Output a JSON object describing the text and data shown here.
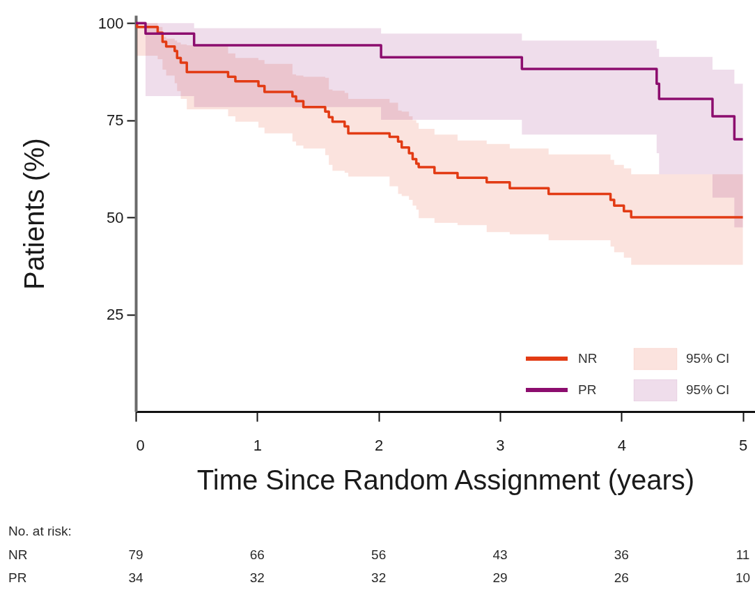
{
  "chart_data": [
    {
      "type": "step",
      "xlabel": "Time Since Random Assignment (years)",
      "ylabel": "Patients (%)",
      "xlim": [
        0,
        5.1
      ],
      "ylim": [
        0,
        102
      ],
      "xticks": [
        0,
        1,
        2,
        3,
        4,
        5
      ],
      "yticks": [
        25,
        50,
        75,
        100
      ],
      "legend": "bottom right",
      "line_style": "solid",
      "annotations": [
        "95% CI",
        "95% CI"
      ],
      "series": [
        {
          "name": "NR",
          "color": "#e23b14",
          "x": [
            0,
            0.01,
            0.18,
            0.22,
            0.25,
            0.32,
            0.34,
            0.37,
            0.42,
            0.76,
            0.82,
            1.01,
            1.06,
            1.29,
            1.32,
            1.38,
            1.56,
            1.59,
            1.62,
            1.72,
            1.75,
            2.09,
            2.16,
            2.19,
            2.25,
            2.28,
            2.31,
            2.33,
            2.46,
            2.65,
            2.89,
            3.08,
            3.4,
            3.91,
            3.94,
            4.02,
            4.08,
            5.0
          ],
          "values": [
            100,
            99.0,
            97.5,
            95.2,
            94.0,
            92.8,
            91.0,
            89.8,
            87.4,
            86.2,
            85.0,
            83.8,
            82.3,
            81.1,
            79.9,
            78.4,
            77.2,
            75.8,
            74.6,
            73.4,
            71.6,
            70.7,
            69.5,
            68.0,
            66.5,
            65.0,
            63.8,
            62.9,
            61.4,
            60.2,
            59.0,
            57.5,
            56.0,
            54.5,
            53.0,
            51.6,
            50.0,
            50.0
          ],
          "upper": [
            100,
            100,
            99,
            96.4,
            96,
            95.5,
            95,
            94.5,
            94.3,
            92.2,
            91,
            90.5,
            89.5,
            86.8,
            86.5,
            86.2,
            85.9,
            82.9,
            82.6,
            82,
            80.5,
            79.5,
            77.5,
            77.2,
            76,
            75,
            74.3,
            72.8,
            71.3,
            69.8,
            68.9,
            67.7,
            66.2,
            64.8,
            63.5,
            62.6,
            61.1,
            61.1
          ],
          "lower": [
            100,
            91.6,
            90.7,
            88,
            86.5,
            84.5,
            82.5,
            80.5,
            77.8,
            76,
            74.6,
            73.1,
            71.6,
            69.5,
            68.5,
            67.7,
            66,
            63.5,
            62,
            61.5,
            60.5,
            58,
            56,
            55.5,
            54.5,
            53,
            52,
            49.8,
            48.6,
            48,
            46.2,
            45.6,
            44.1,
            42.5,
            41,
            39.6,
            37.8,
            37.8
          ]
        },
        {
          "name": "PR",
          "color": "#8c0d6e",
          "x": [
            0,
            0.08,
            0.48,
            2.02,
            3.18,
            4.29,
            4.31,
            4.75,
            4.93,
            5.0
          ],
          "values": [
            100,
            97.3,
            94.3,
            91.2,
            88.2,
            84.4,
            80.5,
            76.0,
            70.1,
            70.1
          ],
          "upper": [
            100,
            100,
            98.7,
            97.3,
            95.5,
            93.4,
            91.3,
            88.0,
            84.4,
            84.4
          ],
          "lower": [
            100,
            81.2,
            78.4,
            75.1,
            71.3,
            66.5,
            61.1,
            55.1,
            47.4,
            47.4
          ]
        }
      ]
    },
    {
      "type": "other",
      "title": "No. at risk:",
      "categories": [
        null,
        null,
        null,
        null,
        null,
        null
      ],
      "y_categories": [
        "NR",
        "PR"
      ],
      "annotations": [
        "79",
        "66",
        "56",
        "43",
        "36",
        "11",
        "34",
        "32",
        "32",
        "29",
        "26",
        "10"
      ]
    }
  ]
}
